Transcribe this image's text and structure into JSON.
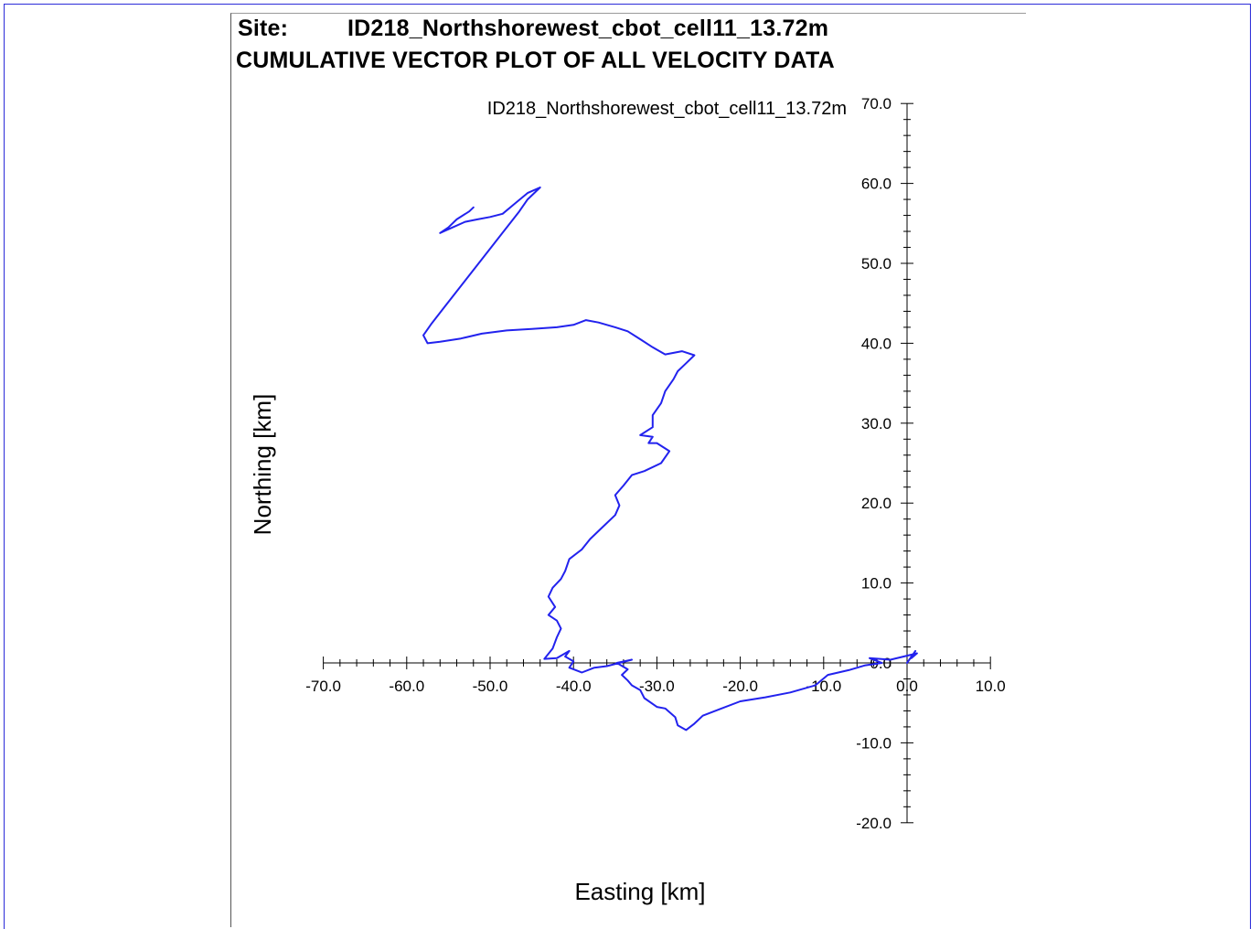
{
  "header": {
    "site_label": "Site:",
    "site_name": "ID218_Northshorewest_cbot_cell11_13.72m",
    "report_title": "CUMULATIVE VECTOR PLOT OF ALL VELOCITY DATA"
  },
  "chart_data": {
    "type": "line",
    "title": "ID218_Northshorewest_cbot_cell11_13.72m",
    "xlabel": "Easting [km]",
    "ylabel": "Northing [km]",
    "xlim": [
      -70,
      10
    ],
    "ylim": [
      -20,
      70
    ],
    "xticks": [
      "-70.0",
      "-60.0",
      "-50.0",
      "-40.0",
      "-30.0",
      "-20.0",
      "-10.0",
      "0.0",
      "10.0"
    ],
    "yticks": [
      "-20.0",
      "-10.0",
      "0.0",
      "10.0",
      "20.0",
      "30.0",
      "40.0",
      "50.0",
      "60.0",
      "70.0"
    ],
    "axes_cross_at": [
      0,
      0
    ],
    "grid": false,
    "line_color": "#2222ee",
    "series": [
      {
        "name": "",
        "points": [
          [
            0.0,
            0.0
          ],
          [
            1.0,
            1.5
          ],
          [
            0.5,
            0.6
          ],
          [
            1.2,
            1.2
          ],
          [
            -2.0,
            0.4
          ],
          [
            -4.5,
            0.6
          ],
          [
            -3.0,
            0.0
          ],
          [
            -5.0,
            -0.3
          ],
          [
            -7.0,
            -0.9
          ],
          [
            -9.5,
            -1.5
          ],
          [
            -11.0,
            -2.8
          ],
          [
            -14.0,
            -3.7
          ],
          [
            -17.0,
            -4.3
          ],
          [
            -20.0,
            -4.8
          ],
          [
            -22.5,
            -5.8
          ],
          [
            -24.5,
            -6.6
          ],
          [
            -25.5,
            -7.6
          ],
          [
            -26.5,
            -8.4
          ],
          [
            -27.5,
            -7.8
          ],
          [
            -27.8,
            -6.8
          ],
          [
            -29.0,
            -5.7
          ],
          [
            -30.0,
            -5.5
          ],
          [
            -31.5,
            -4.4
          ],
          [
            -32.0,
            -3.4
          ],
          [
            -33.0,
            -2.8
          ],
          [
            -33.5,
            -2.2
          ],
          [
            -34.2,
            -1.5
          ],
          [
            -33.5,
            -0.8
          ],
          [
            -34.8,
            0.0
          ],
          [
            -33.0,
            0.4
          ],
          [
            -36.0,
            -0.4
          ],
          [
            -37.5,
            -0.6
          ],
          [
            -39.0,
            -1.2
          ],
          [
            -40.5,
            -0.6
          ],
          [
            -40.0,
            0.2
          ],
          [
            -41.0,
            0.8
          ],
          [
            -40.5,
            1.5
          ],
          [
            -42.0,
            0.6
          ],
          [
            -43.5,
            0.5
          ],
          [
            -42.5,
            1.8
          ],
          [
            -42.0,
            3.2
          ],
          [
            -41.5,
            4.3
          ],
          [
            -42.0,
            5.3
          ],
          [
            -43.0,
            6.0
          ],
          [
            -42.2,
            7.0
          ],
          [
            -43.0,
            8.3
          ],
          [
            -42.5,
            9.4
          ],
          [
            -41.5,
            10.5
          ],
          [
            -41.0,
            11.5
          ],
          [
            -40.5,
            13.0
          ],
          [
            -39.0,
            14.2
          ],
          [
            -38.0,
            15.5
          ],
          [
            -36.5,
            17.0
          ],
          [
            -35.0,
            18.5
          ],
          [
            -34.5,
            19.7
          ],
          [
            -35.0,
            21.0
          ],
          [
            -34.0,
            22.2
          ],
          [
            -33.0,
            23.5
          ],
          [
            -31.5,
            24.0
          ],
          [
            -29.5,
            25.0
          ],
          [
            -28.5,
            26.5
          ],
          [
            -30.0,
            27.5
          ],
          [
            -31.0,
            27.5
          ],
          [
            -30.5,
            28.3
          ],
          [
            -32.0,
            28.5
          ],
          [
            -30.5,
            29.5
          ],
          [
            -30.5,
            31.0
          ],
          [
            -29.5,
            32.5
          ],
          [
            -29.0,
            34.0
          ],
          [
            -28.0,
            35.5
          ],
          [
            -27.5,
            36.5
          ],
          [
            -26.5,
            37.5
          ],
          [
            -25.5,
            38.5
          ],
          [
            -27.0,
            39.0
          ],
          [
            -29.0,
            38.6
          ],
          [
            -30.5,
            39.5
          ],
          [
            -32.0,
            40.5
          ],
          [
            -33.5,
            41.5
          ],
          [
            -35.0,
            42.0
          ],
          [
            -37.0,
            42.6
          ],
          [
            -38.5,
            42.9
          ],
          [
            -40.0,
            42.3
          ],
          [
            -42.0,
            42.0
          ],
          [
            -45.0,
            41.8
          ],
          [
            -48.0,
            41.6
          ],
          [
            -51.0,
            41.2
          ],
          [
            -53.5,
            40.6
          ],
          [
            -56.0,
            40.2
          ],
          [
            -57.5,
            40.0
          ],
          [
            -58.0,
            41.0
          ],
          [
            -57.0,
            42.5
          ],
          [
            -55.5,
            44.5
          ],
          [
            -54.0,
            46.5
          ],
          [
            -52.5,
            48.5
          ],
          [
            -51.0,
            50.5
          ],
          [
            -49.5,
            52.5
          ],
          [
            -48.0,
            54.5
          ],
          [
            -46.5,
            56.5
          ],
          [
            -45.5,
            58.0
          ],
          [
            -44.0,
            59.5
          ],
          [
            -45.5,
            58.8
          ],
          [
            -47.0,
            57.5
          ],
          [
            -48.5,
            56.2
          ],
          [
            -50.0,
            55.8
          ],
          [
            -51.5,
            55.5
          ],
          [
            -53.0,
            55.2
          ],
          [
            -54.5,
            54.5
          ],
          [
            -56.0,
            53.8
          ],
          [
            -55.0,
            54.5
          ],
          [
            -54.0,
            55.5
          ],
          [
            -52.5,
            56.5
          ],
          [
            -52.0,
            57.0
          ]
        ]
      }
    ]
  }
}
